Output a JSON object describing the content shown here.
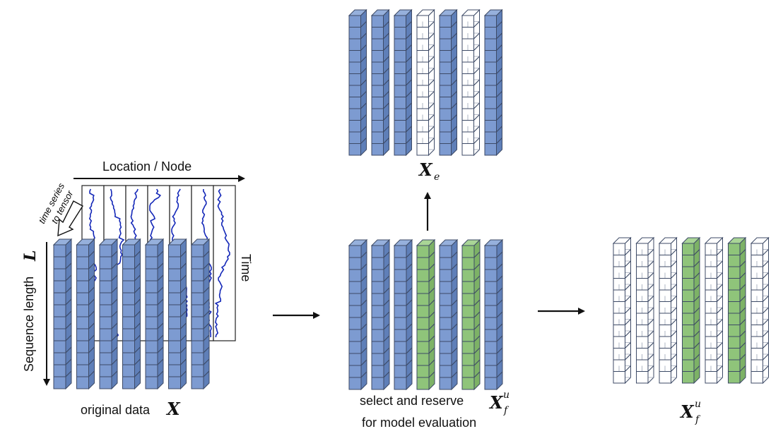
{
  "labels": {
    "location_axis": "Location / Node",
    "time_axis": "Time",
    "sequence_axis": "Sequence length",
    "sequence_var": "L",
    "ts_to_tensor_line1": "time series",
    "ts_to_tensor_line2": "to tensor",
    "original_caption": "original data",
    "original_var": "X",
    "xe_var": "X",
    "xe_sub": "e",
    "select_line1": "select and reserve",
    "select_line2": "for model evaluation",
    "xf_var": "X",
    "xf_sub": "f",
    "xf_sup": "u",
    "final_var": "X",
    "final_sub": "f",
    "final_sup": "u"
  },
  "colors": {
    "filled": "#6f8fc6",
    "filled_front": "#7d9bd1",
    "selected": "#8fc47a",
    "empty": "#ffffff",
    "edge": "#3d4a66",
    "series_line": "#1428b8",
    "arrow": "#111111"
  },
  "blocks": {
    "original": {
      "columns": 7,
      "pattern": [
        "filled",
        "filled",
        "filled",
        "filled",
        "filled",
        "filled",
        "filled"
      ],
      "cubes": 12
    },
    "xe": {
      "columns": 7,
      "pattern": [
        "filled",
        "filled",
        "filled",
        "empty",
        "filled",
        "empty",
        "filled"
      ],
      "cubes": 12
    },
    "middle": {
      "columns": 7,
      "pattern": [
        "filled",
        "filled",
        "filled",
        "selected",
        "filled",
        "selected",
        "filled"
      ],
      "cubes": 12
    },
    "final": {
      "columns": 7,
      "pattern": [
        "empty",
        "empty",
        "empty",
        "selected",
        "empty",
        "selected",
        "empty"
      ],
      "cubes": 12
    }
  }
}
